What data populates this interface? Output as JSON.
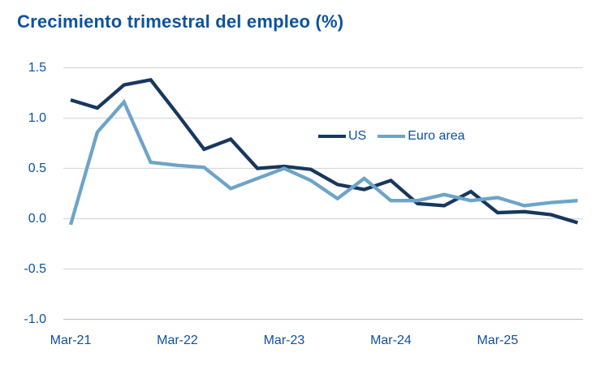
{
  "title": "Crecimiento trimestral del empleo (%)",
  "colors": {
    "title_text": "#0d52a0",
    "tick_label_text": "#0d52a0",
    "us_line": "#17375e",
    "euro_area_line": "#6da4c8",
    "gridline": "#d9d9d9",
    "bottom_axis_line": "#c4c4c4",
    "background": "#ffffff"
  },
  "chart_data": {
    "type": "line",
    "title": "Crecimiento trimestral del empleo (%)",
    "x": [
      "Mar-21",
      "Jun-21",
      "Sep-21",
      "Dec-21",
      "Mar-22",
      "Jun-22",
      "Sep-22",
      "Dec-22",
      "Mar-23",
      "Jun-23",
      "Sep-23",
      "Dec-23",
      "Mar-24",
      "Jun-24",
      "Sep-24",
      "Dec-24",
      "Mar-25",
      "Jun-25",
      "Sep-25",
      "Dec-25"
    ],
    "x_axis_labels_shown": [
      "Mar-21",
      "Mar-22",
      "Mar-23",
      "Mar-24",
      "Mar-25"
    ],
    "x_axis_label_indices": [
      0,
      4,
      8,
      12,
      16
    ],
    "y_ticks": [
      "1.5",
      "1.0",
      "0.5",
      "0.0",
      "-0.5",
      "-1.0"
    ],
    "y_tick_values": [
      1.5,
      1.0,
      0.5,
      0.0,
      -0.5,
      -1.0
    ],
    "ylim": [
      -1.0,
      1.5
    ],
    "grid": "horizontal",
    "legend_position": "inside-upper-middle-right",
    "series": [
      {
        "name": "US",
        "color": "#17375e",
        "values": [
          1.18,
          1.1,
          1.33,
          1.38,
          1.04,
          0.69,
          0.79,
          0.5,
          0.52,
          0.49,
          0.34,
          0.29,
          0.38,
          0.15,
          0.13,
          0.27,
          0.06,
          0.07,
          0.04,
          -0.04
        ]
      },
      {
        "name": "Euro area",
        "color": "#6da4c8",
        "values": [
          -0.06,
          0.86,
          1.16,
          0.56,
          0.53,
          0.51,
          0.3,
          0.4,
          0.5,
          0.38,
          0.2,
          0.4,
          0.18,
          0.18,
          0.24,
          0.18,
          0.21,
          0.13,
          0.16,
          0.18
        ]
      }
    ]
  }
}
